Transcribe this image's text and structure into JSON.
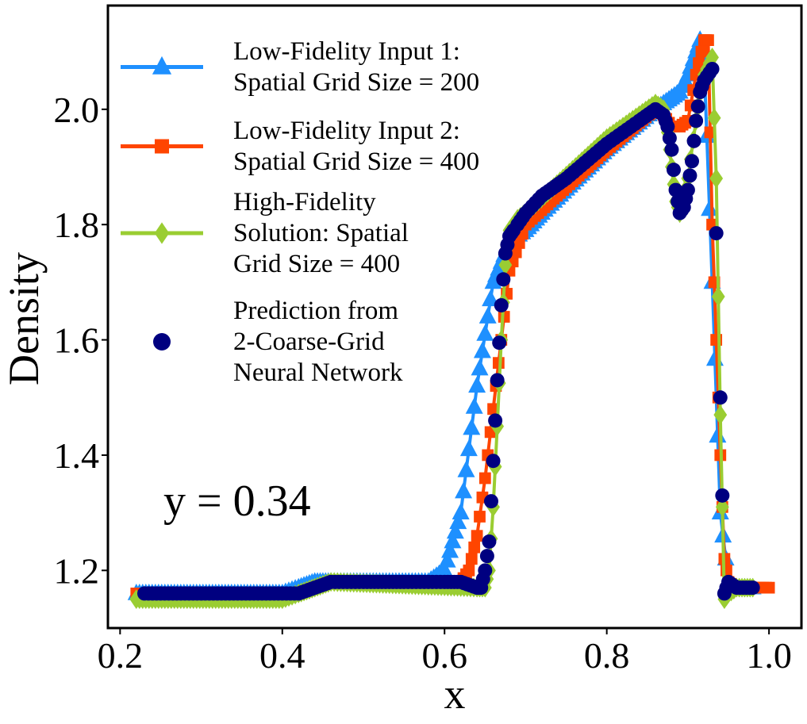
{
  "chart_data": {
    "type": "line",
    "xlabel": "x",
    "ylabel": "Density",
    "xlim": [
      0.185,
      1.04
    ],
    "ylim": [
      1.1,
      2.18
    ],
    "xticks": [
      "0.2",
      "0.4",
      "0.6",
      "0.8",
      "1.0"
    ],
    "yticks": [
      "1.2",
      "1.4",
      "1.6",
      "1.8",
      "2.0"
    ],
    "grid": false,
    "legend_position": "upper-left",
    "annotation": "y = 0.34",
    "series": [
      {
        "name": "Low-Fidelity Input 1: Spatial Grid Size = 200",
        "legend_lines": [
          "Low-Fidelity Input 1:",
          "Spatial Grid Size = 200"
        ],
        "color": "#1E90FF",
        "marker": "triangle",
        "x": [
          0.22,
          0.4,
          0.42,
          0.44,
          0.46,
          0.58,
          0.6,
          0.62,
          0.64,
          0.66,
          0.68,
          0.7,
          0.72,
          0.8,
          0.86,
          0.87,
          0.89,
          0.9,
          0.91,
          0.915,
          0.92,
          0.93,
          0.94,
          0.95,
          0.96,
          0.98
        ],
        "y": [
          1.16,
          1.16,
          1.17,
          1.18,
          1.18,
          1.18,
          1.2,
          1.3,
          1.52,
          1.7,
          1.77,
          1.79,
          1.82,
          1.93,
          2.0,
          2.01,
          2.03,
          2.06,
          2.1,
          2.12,
          2.08,
          1.7,
          1.3,
          1.18,
          1.17,
          1.17
        ]
      },
      {
        "name": "Low-Fidelity Input 2: Spatial Grid Size = 400",
        "legend_lines": [
          "Low-Fidelity Input 2:",
          "Spatial Grid Size = 400"
        ],
        "color": "#FF4500",
        "marker": "square",
        "x": [
          0.22,
          0.4,
          0.42,
          0.44,
          0.46,
          0.62,
          0.63,
          0.64,
          0.65,
          0.66,
          0.67,
          0.68,
          0.7,
          0.8,
          0.86,
          0.87,
          0.88,
          0.89,
          0.9,
          0.91,
          0.92,
          0.925,
          0.93,
          0.935,
          0.94,
          0.945,
          0.95,
          0.96,
          1.0
        ],
        "y": [
          1.16,
          1.16,
          1.16,
          1.17,
          1.18,
          1.18,
          1.2,
          1.26,
          1.36,
          1.48,
          1.6,
          1.72,
          1.8,
          1.93,
          2.0,
          1.99,
          1.97,
          1.97,
          1.98,
          2.06,
          2.12,
          2.12,
          1.8,
          1.6,
          1.4,
          1.22,
          1.18,
          1.17,
          1.17
        ]
      },
      {
        "name": "High-Fidelity Solution: Spatial Grid Size = 400",
        "legend_lines": [
          "High-Fidelity",
          "Solution: Spatial",
          "Grid Size = 400"
        ],
        "color": "#9ACD32",
        "marker": "diamond",
        "x": [
          0.22,
          0.4,
          0.42,
          0.44,
          0.46,
          0.64,
          0.65,
          0.655,
          0.66,
          0.665,
          0.67,
          0.675,
          0.68,
          0.69,
          0.7,
          0.8,
          0.86,
          0.87,
          0.875,
          0.88,
          0.885,
          0.89,
          0.9,
          0.91,
          0.92,
          0.93,
          0.935,
          0.94,
          0.945,
          0.95,
          0.96,
          0.98
        ],
        "y": [
          1.15,
          1.15,
          1.16,
          1.17,
          1.18,
          1.17,
          1.17,
          1.2,
          1.31,
          1.45,
          1.6,
          1.73,
          1.79,
          1.81,
          1.82,
          1.95,
          2.01,
          2.0,
          1.96,
          1.9,
          1.84,
          1.82,
          1.88,
          1.98,
          2.06,
          2.09,
          1.88,
          1.47,
          1.15,
          1.16,
          1.17,
          1.17
        ]
      },
      {
        "name": "Prediction from 2-Coarse-Grid Neural Network",
        "legend_lines": [
          "Prediction from",
          "2-Coarse-Grid",
          "Neural Network"
        ],
        "color": "#000080",
        "marker": "circle",
        "x": [
          0.23,
          0.4,
          0.42,
          0.44,
          0.46,
          0.5,
          0.55,
          0.6,
          0.62,
          0.64,
          0.645,
          0.65,
          0.655,
          0.66,
          0.665,
          0.67,
          0.675,
          0.68,
          0.685,
          0.69,
          0.7,
          0.72,
          0.75,
          0.8,
          0.84,
          0.86,
          0.87,
          0.875,
          0.88,
          0.885,
          0.89,
          0.895,
          0.9,
          0.905,
          0.91,
          0.915,
          0.92,
          0.93,
          0.94,
          0.945,
          0.95,
          0.96,
          0.98
        ],
        "y": [
          1.16,
          1.16,
          1.16,
          1.17,
          1.18,
          1.18,
          1.18,
          1.18,
          1.18,
          1.17,
          1.17,
          1.2,
          1.25,
          1.39,
          1.53,
          1.66,
          1.75,
          1.78,
          1.79,
          1.8,
          1.82,
          1.85,
          1.88,
          1.94,
          1.98,
          2.0,
          1.99,
          1.97,
          1.93,
          1.86,
          1.82,
          1.83,
          1.86,
          1.91,
          1.98,
          2.03,
          2.05,
          2.07,
          1.5,
          1.16,
          1.18,
          1.17,
          1.17
        ]
      }
    ]
  }
}
